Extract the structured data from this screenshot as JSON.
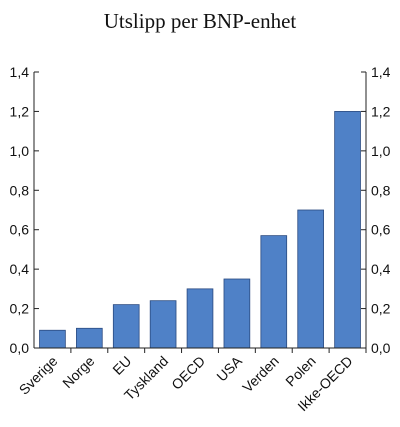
{
  "chart_data": {
    "type": "bar",
    "title": "Utslipp per BNP-enhet",
    "categories": [
      "Sverige",
      "Norge",
      "EU",
      "Tyskland",
      "OECD",
      "USA",
      "Verden",
      "Polen",
      "Ikke-OECD"
    ],
    "values": [
      0.09,
      0.1,
      0.22,
      0.24,
      0.3,
      0.35,
      0.57,
      0.7,
      1.2
    ],
    "ylim": [
      0,
      1.4
    ],
    "yticks": [
      "0,0",
      "0,2",
      "0,4",
      "0,6",
      "0,8",
      "1,0",
      "1,2",
      "1,4"
    ],
    "secondary_y_axis": true,
    "bar_color": "#4f81c7",
    "grid": false,
    "legend": "none"
  }
}
